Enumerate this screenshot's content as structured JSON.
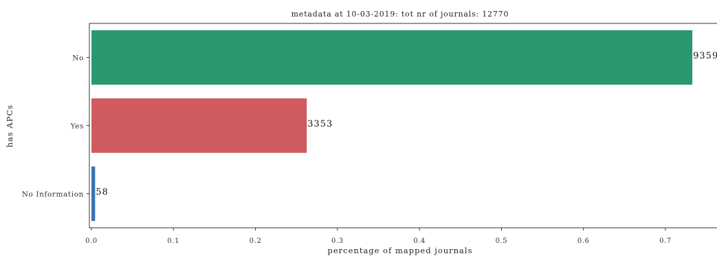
{
  "chart_data": {
    "type": "bar",
    "orientation": "horizontal",
    "title": "metadata at 10-03-2019: tot nr of journals: 12770",
    "xlabel": "percentage of mapped journals",
    "ylabel": "has APCs",
    "categories": [
      "No",
      "Yes",
      "No Information"
    ],
    "values": [
      0.7328,
      0.2626,
      0.0045
    ],
    "data_labels": [
      "9359",
      "3353",
      "58"
    ],
    "colors": [
      "#2a9a6e",
      "#cf5b5f",
      "#3b72b8"
    ],
    "xlim": [
      0.0,
      0.75
    ],
    "xticks": [
      "0.0",
      "0.1",
      "0.2",
      "0.3",
      "0.4",
      "0.5",
      "0.6",
      "0.7"
    ],
    "grid": false
  }
}
